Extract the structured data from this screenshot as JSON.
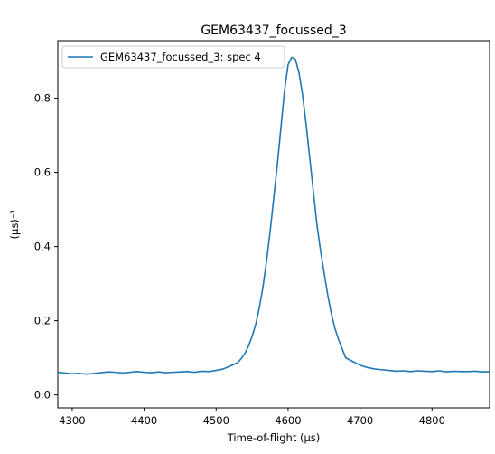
{
  "chart_data": {
    "type": "line",
    "title": "GEM63437_focussed_3",
    "xlabel": "Time-of-flight (μs)",
    "ylabel": "(μs)⁻¹",
    "xlim": [
      4280,
      4880
    ],
    "ylim": [
      -0.035,
      0.955
    ],
    "xticks": [
      4300,
      4400,
      4500,
      4600,
      4700,
      4800
    ],
    "yticks": [
      0.0,
      0.2,
      0.4,
      0.6,
      0.8
    ],
    "ytick_labels": [
      "0.0",
      "0.2",
      "0.4",
      "0.6",
      "0.8"
    ],
    "legend_position": "top-left",
    "grid": false,
    "series": [
      {
        "name": "GEM63437_focussed_3: spec 4",
        "color": "#1f77b4",
        "x": [
          4280,
          4290,
          4300,
          4310,
          4320,
          4330,
          4340,
          4350,
          4360,
          4370,
          4380,
          4390,
          4400,
          4410,
          4420,
          4430,
          4440,
          4450,
          4460,
          4470,
          4480,
          4490,
          4500,
          4510,
          4520,
          4530,
          4535,
          4540,
          4545,
          4550,
          4555,
          4560,
          4565,
          4570,
          4575,
          4580,
          4585,
          4590,
          4595,
          4600,
          4605,
          4610,
          4615,
          4620,
          4625,
          4630,
          4635,
          4640,
          4645,
          4650,
          4655,
          4660,
          4665,
          4670,
          4675,
          4680,
          4690,
          4700,
          4710,
          4720,
          4730,
          4740,
          4750,
          4760,
          4770,
          4780,
          4790,
          4800,
          4810,
          4820,
          4830,
          4840,
          4850,
          4860,
          4870,
          4880
        ],
        "values": [
          0.061,
          0.059,
          0.057,
          0.058,
          0.056,
          0.058,
          0.06,
          0.062,
          0.061,
          0.059,
          0.061,
          0.063,
          0.061,
          0.06,
          0.062,
          0.06,
          0.061,
          0.062,
          0.063,
          0.061,
          0.064,
          0.063,
          0.066,
          0.07,
          0.078,
          0.087,
          0.098,
          0.112,
          0.132,
          0.158,
          0.19,
          0.235,
          0.29,
          0.36,
          0.44,
          0.53,
          0.62,
          0.72,
          0.82,
          0.89,
          0.91,
          0.905,
          0.87,
          0.81,
          0.73,
          0.64,
          0.55,
          0.46,
          0.39,
          0.33,
          0.27,
          0.22,
          0.18,
          0.15,
          0.125,
          0.1,
          0.09,
          0.08,
          0.074,
          0.07,
          0.068,
          0.066,
          0.064,
          0.065,
          0.063,
          0.065,
          0.064,
          0.063,
          0.065,
          0.062,
          0.064,
          0.063,
          0.063,
          0.064,
          0.062,
          0.063
        ]
      }
    ]
  }
}
